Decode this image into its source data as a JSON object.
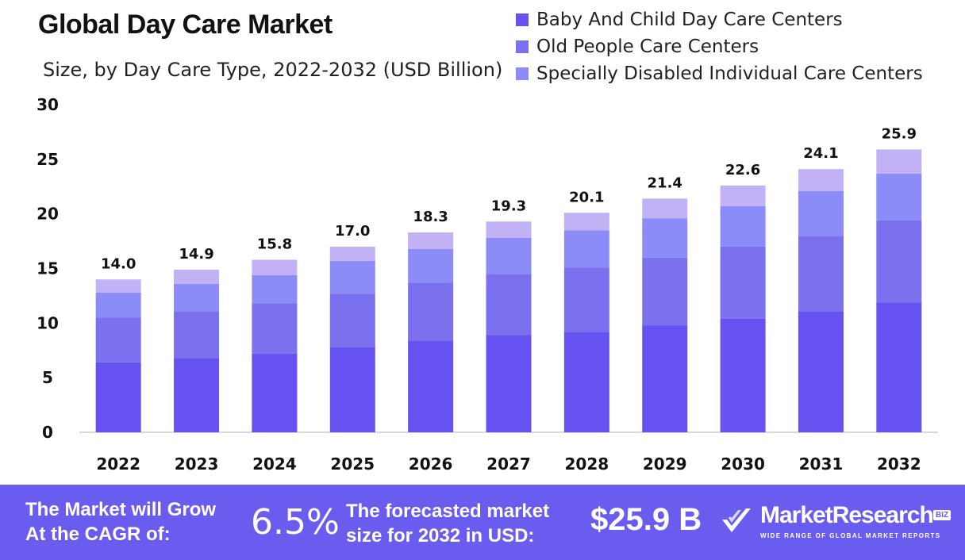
{
  "title": "Global Day Care Market",
  "subtitle": "Size, by Day Care Type, 2022-2032 (USD Billion)",
  "colors": {
    "baby": "#6552f1",
    "old": "#7b70ee",
    "disabled": "#8c8cf8",
    "top": "#c2b2f5",
    "footer": "#6b5cf0",
    "axis": "#cccccc"
  },
  "legend": [
    {
      "label": " Baby And Child Day Care Centers",
      "color": "#6552f1"
    },
    {
      "label": "Old People Care Centers",
      "color": "#7b70ee"
    },
    {
      "label": "Specially Disabled Individual Care Centers",
      "color": "#8c8cf8"
    }
  ],
  "chart_data": {
    "type": "bar",
    "stacked": true,
    "title": "Global Day Care Market",
    "subtitle": "Size, by Day Care Type, 2022-2032 (USD Billion)",
    "xlabel": "",
    "ylabel": "",
    "ylim": [
      0,
      30
    ],
    "yticks": [
      0,
      5,
      10,
      15,
      20,
      25,
      30
    ],
    "categories": [
      "2022",
      "2023",
      "2024",
      "2025",
      "2026",
      "2027",
      "2028",
      "2029",
      "2030",
      "2031",
      "2032"
    ],
    "series": [
      {
        "name": "Baby And Child Day Care Centers",
        "color": "#6552f1",
        "values": [
          6.4,
          6.8,
          7.2,
          7.8,
          8.4,
          8.9,
          9.2,
          9.8,
          10.4,
          11.1,
          11.9
        ]
      },
      {
        "name": "Old People Care Centers",
        "color": "#7b70ee",
        "values": [
          4.1,
          4.3,
          4.6,
          4.9,
          5.3,
          5.6,
          5.9,
          6.2,
          6.6,
          6.9,
          7.5
        ]
      },
      {
        "name": "Specially Disabled Individual Care Centers",
        "color": "#8c8cf8",
        "values": [
          2.3,
          2.5,
          2.6,
          3.0,
          3.1,
          3.3,
          3.4,
          3.6,
          3.7,
          4.1,
          4.3
        ]
      },
      {
        "name": "",
        "color": "#c2b2f5",
        "values": [
          1.2,
          1.3,
          1.4,
          1.3,
          1.5,
          1.5,
          1.6,
          1.8,
          1.9,
          2.0,
          2.2
        ]
      }
    ],
    "totals": [
      14.0,
      14.9,
      15.8,
      17.0,
      18.3,
      19.3,
      20.1,
      21.4,
      22.6,
      24.1,
      25.9
    ],
    "total_labels": [
      "14.0",
      "14.9",
      "15.8",
      "17.0",
      "18.3",
      "19.3",
      "20.1",
      "21.4",
      "22.6",
      "24.1",
      "25.9"
    ],
    "grid": false,
    "legend_position": "top-right"
  },
  "footer": {
    "cagr_label": "The Market will Grow\nAt the CAGR of:",
    "cagr_value": "6.5%",
    "size_label": "The forecasted market\nsize for 2032 in USD:",
    "size_value": "$25.9 B",
    "brand_name": "MarketResearch",
    "brand_badge": "BIZ",
    "brand_tagline": "WIDE RANGE OF GLOBAL MARKET REPORTS",
    "brand_icon": "checkmark-logo-icon"
  }
}
